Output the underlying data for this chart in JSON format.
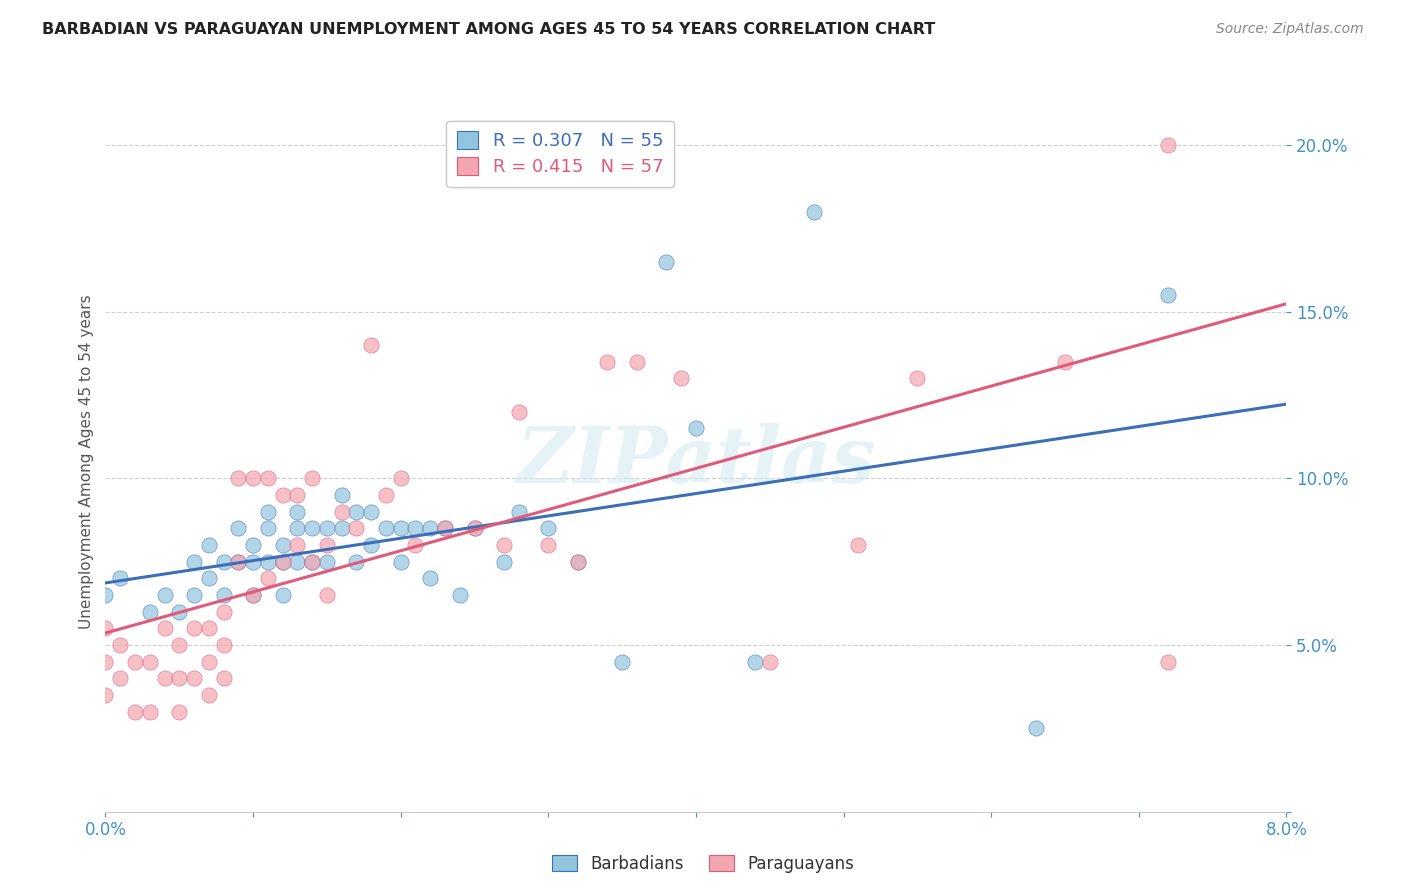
{
  "title": "BARBADIAN VS PARAGUAYAN UNEMPLOYMENT AMONG AGES 45 TO 54 YEARS CORRELATION CHART",
  "source": "Source: ZipAtlas.com",
  "ylabel": "Unemployment Among Ages 45 to 54 years",
  "xlim": [
    0.0,
    0.08
  ],
  "ylim": [
    0.0,
    0.21
  ],
  "barbadian_R": 0.307,
  "barbadian_N": 55,
  "paraguayan_R": 0.415,
  "paraguayan_N": 57,
  "barbadian_color": "#92c5de",
  "paraguayan_color": "#f4a6b0",
  "barbadian_line_color": "#3b6fba",
  "paraguayan_line_color": "#e05a7a",
  "watermark": "ZIPatlas",
  "background_color": "#ffffff",
  "grid_color": "#d0d0d0",
  "barbadian_x": [
    0.0,
    0.001,
    0.003,
    0.004,
    0.005,
    0.006,
    0.006,
    0.007,
    0.007,
    0.008,
    0.008,
    0.009,
    0.009,
    0.01,
    0.01,
    0.01,
    0.011,
    0.011,
    0.011,
    0.012,
    0.012,
    0.012,
    0.013,
    0.013,
    0.013,
    0.014,
    0.014,
    0.015,
    0.015,
    0.016,
    0.016,
    0.017,
    0.017,
    0.018,
    0.018,
    0.019,
    0.02,
    0.02,
    0.021,
    0.022,
    0.022,
    0.023,
    0.024,
    0.025,
    0.027,
    0.028,
    0.03,
    0.032,
    0.035,
    0.038,
    0.04,
    0.044,
    0.048,
    0.063,
    0.072
  ],
  "barbadian_y": [
    0.065,
    0.07,
    0.06,
    0.065,
    0.06,
    0.075,
    0.065,
    0.08,
    0.07,
    0.075,
    0.065,
    0.085,
    0.075,
    0.08,
    0.075,
    0.065,
    0.09,
    0.085,
    0.075,
    0.08,
    0.075,
    0.065,
    0.09,
    0.085,
    0.075,
    0.085,
    0.075,
    0.085,
    0.075,
    0.095,
    0.085,
    0.09,
    0.075,
    0.09,
    0.08,
    0.085,
    0.085,
    0.075,
    0.085,
    0.085,
    0.07,
    0.085,
    0.065,
    0.085,
    0.075,
    0.09,
    0.085,
    0.075,
    0.045,
    0.165,
    0.115,
    0.045,
    0.18,
    0.025,
    0.155
  ],
  "paraguayan_x": [
    0.0,
    0.0,
    0.0,
    0.001,
    0.001,
    0.002,
    0.002,
    0.003,
    0.003,
    0.004,
    0.004,
    0.005,
    0.005,
    0.005,
    0.006,
    0.006,
    0.007,
    0.007,
    0.007,
    0.008,
    0.008,
    0.008,
    0.009,
    0.009,
    0.01,
    0.01,
    0.011,
    0.011,
    0.012,
    0.012,
    0.013,
    0.013,
    0.014,
    0.014,
    0.015,
    0.015,
    0.016,
    0.017,
    0.018,
    0.019,
    0.02,
    0.021,
    0.023,
    0.025,
    0.027,
    0.028,
    0.03,
    0.032,
    0.034,
    0.036,
    0.039,
    0.045,
    0.051,
    0.055,
    0.065,
    0.072,
    0.072
  ],
  "paraguayan_y": [
    0.055,
    0.045,
    0.035,
    0.05,
    0.04,
    0.045,
    0.03,
    0.045,
    0.03,
    0.055,
    0.04,
    0.05,
    0.04,
    0.03,
    0.055,
    0.04,
    0.055,
    0.045,
    0.035,
    0.06,
    0.05,
    0.04,
    0.1,
    0.075,
    0.1,
    0.065,
    0.1,
    0.07,
    0.095,
    0.075,
    0.095,
    0.08,
    0.1,
    0.075,
    0.08,
    0.065,
    0.09,
    0.085,
    0.14,
    0.095,
    0.1,
    0.08,
    0.085,
    0.085,
    0.08,
    0.12,
    0.08,
    0.075,
    0.135,
    0.135,
    0.13,
    0.045,
    0.08,
    0.13,
    0.135,
    0.2,
    0.045
  ]
}
